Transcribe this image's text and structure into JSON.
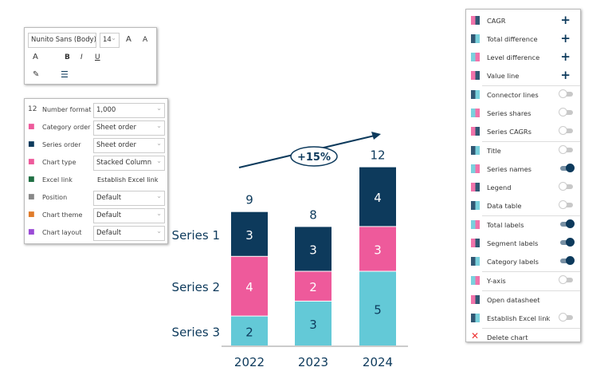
{
  "format_toolbar": {
    "font": "Nunito Sans (Body)",
    "size": "14",
    "grow": "A",
    "shrink": "A",
    "font_color": "A",
    "bold": "B",
    "italic": "I",
    "underline": "U"
  },
  "properties": [
    {
      "icon": "number-format-icon",
      "glyph": "12",
      "label": "Number format",
      "value": "1,000",
      "type": "select"
    },
    {
      "icon": "category-order-icon",
      "label": "Category order",
      "value": "Sheet order",
      "type": "select"
    },
    {
      "icon": "series-order-icon",
      "label": "Series order",
      "value": "Sheet order",
      "type": "select"
    },
    {
      "icon": "chart-type-icon",
      "label": "Chart type",
      "value": "Stacked Column",
      "type": "select"
    },
    {
      "icon": "excel-link-icon",
      "label": "Excel link",
      "value": "Establish Excel link",
      "type": "link"
    },
    {
      "icon": "position-icon",
      "label": "Position",
      "value": "Default",
      "type": "select"
    },
    {
      "icon": "chart-theme-icon",
      "label": "Chart theme",
      "value": "Default",
      "type": "select"
    },
    {
      "icon": "chart-layout-icon",
      "label": "Chart layout",
      "value": "Default",
      "type": "select"
    }
  ],
  "menu": [
    {
      "label": "CAGR",
      "control": "plus",
      "icon": "cagr-icon"
    },
    {
      "label": "Total difference",
      "control": "plus",
      "icon": "total-difference-icon"
    },
    {
      "label": "Level difference",
      "control": "plus",
      "icon": "level-difference-icon"
    },
    {
      "label": "Value line",
      "control": "plus",
      "icon": "value-line-icon",
      "sep": true
    },
    {
      "label": "Connector lines",
      "control": "off",
      "icon": "connector-lines-icon"
    },
    {
      "label": "Series shares",
      "control": "off",
      "icon": "series-shares-icon"
    },
    {
      "label": "Series CAGRs",
      "control": "off",
      "icon": "series-cagrs-icon",
      "sep": true
    },
    {
      "label": "Title",
      "control": "off",
      "icon": "title-icon"
    },
    {
      "label": "Series names",
      "control": "on",
      "icon": "series-names-icon"
    },
    {
      "label": "Legend",
      "control": "off",
      "icon": "legend-icon"
    },
    {
      "label": "Data table",
      "control": "off",
      "icon": "data-table-icon",
      "sep": true
    },
    {
      "label": "Total labels",
      "control": "on",
      "icon": "total-labels-icon"
    },
    {
      "label": "Segment labels",
      "control": "on",
      "icon": "segment-labels-icon"
    },
    {
      "label": "Category labels",
      "control": "on",
      "icon": "category-labels-icon",
      "sep": true
    },
    {
      "label": "Y-axis",
      "control": "off",
      "icon": "y-axis-icon",
      "sep": true
    },
    {
      "label": "Open datasheet",
      "control": "none",
      "icon": "datasheet-icon"
    },
    {
      "label": "Establish Excel link",
      "control": "off",
      "icon": "excel-link-icon",
      "sep": true
    },
    {
      "label": "Delete chart",
      "control": "none",
      "icon": "delete-icon"
    }
  ],
  "colors": {
    "series1": "#0d3a5c",
    "series2": "#ee5a9b",
    "series3": "#63c9d7",
    "accent": "#0d3a5c"
  },
  "chart_data": {
    "type": "bar",
    "stacked": true,
    "categories": [
      "2022",
      "2023",
      "2024"
    ],
    "series": [
      {
        "name": "Series 3",
        "values": [
          2,
          3,
          5
        ]
      },
      {
        "name": "Series 2",
        "values": [
          4,
          2,
          3
        ]
      },
      {
        "name": "Series 1",
        "values": [
          3,
          3,
          4
        ]
      }
    ],
    "totals": [
      "9",
      "8",
      "12"
    ],
    "cagr_label": "+15%"
  }
}
